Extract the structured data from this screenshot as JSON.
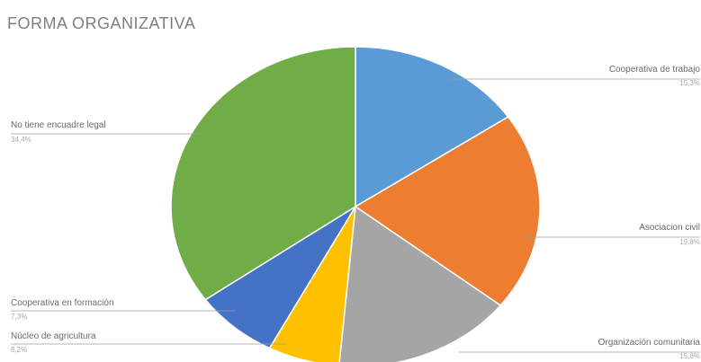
{
  "chart_data": {
    "type": "pie",
    "title": "FORMA ORGANIZATIVA",
    "categories": [
      "Cooperativa de trabajo",
      "Asociacion civil",
      "Organización comunitaria",
      "Núcleo de agricultura",
      "Cooperativa en formación",
      "No tiene encuadre legal"
    ],
    "values": [
      15.3,
      19.8,
      15.6,
      6.2,
      7.3,
      34.4
    ],
    "value_labels": [
      "15,3%",
      "19,8%",
      "15,6%",
      "6,2%",
      "7,3%",
      "34,4%"
    ],
    "colors": [
      "#5b9bd5",
      "#ed7d31",
      "#a5a5a5",
      "#ffc000",
      "#4472c4",
      "#70ad47"
    ],
    "start_angle_deg": 0,
    "direction": "clockwise",
    "legend": "none",
    "data_labels": "outside with leader lines"
  }
}
